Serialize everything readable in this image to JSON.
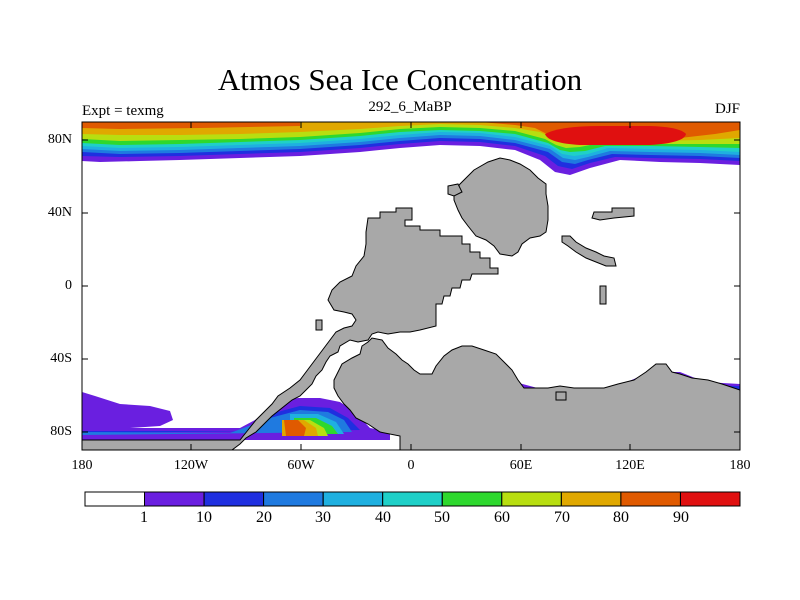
{
  "title": "Atmos Sea Ice Concentration",
  "subtitle_left": "Expt = texmg",
  "subtitle_center": "292_6_MaBP",
  "subtitle_right": "DJF",
  "y_ticks": [
    "80N",
    "40N",
    "0",
    "40S",
    "80S"
  ],
  "x_ticks": [
    "180",
    "120W",
    "60W",
    "0",
    "60E",
    "120E",
    "180"
  ],
  "colorbar": {
    "labels": [
      "1",
      "10",
      "20",
      "30",
      "40",
      "50",
      "60",
      "70",
      "80",
      "90"
    ],
    "colors": [
      "#ffffff",
      "#6a1fe0",
      "#1f2fe0",
      "#1f7ae0",
      "#1fb0e0",
      "#1fd0c8",
      "#2ed82e",
      "#b8de10",
      "#e0a800",
      "#e05a00",
      "#e01010"
    ]
  },
  "colors": {
    "land": "#a8a8a8",
    "ocean": "#ffffff",
    "frame": "#000000"
  }
}
